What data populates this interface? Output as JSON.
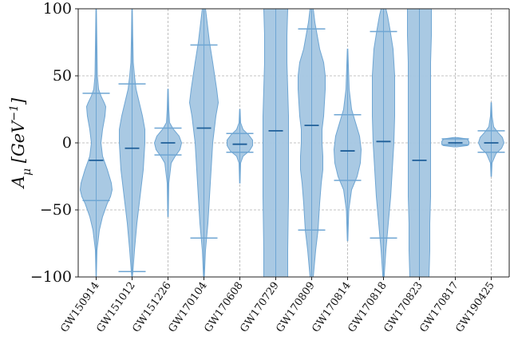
{
  "chart_data": {
    "type": "violin",
    "ylabel": "A_μ [GeV⁻¹]",
    "ylabel_parts": {
      "symbol": "A",
      "subscript": "μ",
      "unit_open": " [",
      "unit_main": "GeV",
      "unit_sup": "−1",
      "unit_close": "]"
    },
    "ylim": [
      -100,
      100
    ],
    "yticks": [
      -100,
      -50,
      0,
      50,
      100
    ],
    "ytick_labels": [
      "−100",
      "−50",
      "0",
      "50",
      "100"
    ],
    "grid": true,
    "categories": [
      "GW150914",
      "GW151012",
      "GW151226",
      "GW170104",
      "GW170608",
      "GW170729",
      "GW170809",
      "GW170814",
      "GW170818",
      "GW170823",
      "GW170817",
      "GW190425"
    ],
    "fill_color": "#a4c6e1",
    "line_color": "#6fa6d3",
    "median_color": "#1f5f99",
    "violins": [
      {
        "name": "GW150914",
        "median": -13,
        "lower": -43,
        "upper": 37,
        "tail_lo": -100,
        "tail_hi": 100,
        "profile": [
          [
            -100,
            0.2
          ],
          [
            -80,
            1
          ],
          [
            -65,
            4
          ],
          [
            -55,
            8
          ],
          [
            -45,
            14
          ],
          [
            -40,
            18
          ],
          [
            -35,
            20
          ],
          [
            -30,
            19
          ],
          [
            -20,
            14
          ],
          [
            -10,
            8
          ],
          [
            0,
            6
          ],
          [
            10,
            8
          ],
          [
            20,
            11
          ],
          [
            27,
            12
          ],
          [
            30,
            10
          ],
          [
            35,
            6
          ],
          [
            40,
            3
          ],
          [
            50,
            1.5
          ],
          [
            70,
            1
          ],
          [
            100,
            0.3
          ]
        ]
      },
      {
        "name": "GW151012",
        "median": -4,
        "lower": -96,
        "upper": 44,
        "tail_lo": -100,
        "tail_hi": 100,
        "profile": [
          [
            -100,
            0.3
          ],
          [
            -96,
            1
          ],
          [
            -80,
            3
          ],
          [
            -60,
            6
          ],
          [
            -40,
            10
          ],
          [
            -20,
            14
          ],
          [
            0,
            16
          ],
          [
            10,
            16
          ],
          [
            20,
            13
          ],
          [
            30,
            9
          ],
          [
            40,
            5
          ],
          [
            50,
            3
          ],
          [
            60,
            1.5
          ],
          [
            80,
            0.8
          ],
          [
            100,
            0.3
          ]
        ]
      },
      {
        "name": "GW151226",
        "median": 0,
        "lower": -9,
        "upper": 11,
        "tail_lo": -55,
        "tail_hi": 40,
        "profile": [
          [
            -55,
            0.3
          ],
          [
            -30,
            1
          ],
          [
            -15,
            4
          ],
          [
            -10,
            9
          ],
          [
            -5,
            15
          ],
          [
            0,
            17
          ],
          [
            5,
            14
          ],
          [
            10,
            7
          ],
          [
            15,
            2
          ],
          [
            25,
            1
          ],
          [
            40,
            0.3
          ]
        ]
      },
      {
        "name": "GW170104",
        "median": 11,
        "lower": -71,
        "upper": 73,
        "tail_lo": -100,
        "tail_hi": 100,
        "profile": [
          [
            -100,
            0.5
          ],
          [
            -80,
            2
          ],
          [
            -60,
            5
          ],
          [
            -40,
            7
          ],
          [
            -20,
            9
          ],
          [
            0,
            11
          ],
          [
            20,
            15
          ],
          [
            30,
            18
          ],
          [
            40,
            16
          ],
          [
            60,
            11
          ],
          [
            75,
            7
          ],
          [
            90,
            4
          ],
          [
            100,
            2
          ]
        ]
      },
      {
        "name": "GW170608",
        "median": -1,
        "lower": -7,
        "upper": 7,
        "tail_lo": -30,
        "tail_hi": 25,
        "profile": [
          [
            -30,
            0.3
          ],
          [
            -15,
            1
          ],
          [
            -10,
            4
          ],
          [
            -6,
            12
          ],
          [
            -2,
            16
          ],
          [
            2,
            16
          ],
          [
            6,
            11
          ],
          [
            10,
            4
          ],
          [
            15,
            1
          ],
          [
            25,
            0.3
          ]
        ]
      },
      {
        "name": "GW170729",
        "median": 9,
        "lower": -100,
        "upper": 100,
        "tail_lo": -100,
        "tail_hi": 100,
        "profile": [
          [
            -100,
            15
          ],
          [
            -80,
            15
          ],
          [
            -60,
            15.5
          ],
          [
            -40,
            16
          ],
          [
            -20,
            16
          ],
          [
            0,
            16
          ],
          [
            20,
            16
          ],
          [
            40,
            15
          ],
          [
            60,
            14
          ],
          [
            80,
            14
          ],
          [
            100,
            15
          ]
        ]
      },
      {
        "name": "GW170809",
        "median": 13,
        "lower": -65,
        "upper": 85,
        "tail_lo": -100,
        "tail_hi": 100,
        "profile": [
          [
            -100,
            2
          ],
          [
            -80,
            5
          ],
          [
            -65,
            8
          ],
          [
            -45,
            10
          ],
          [
            -30,
            12
          ],
          [
            -20,
            14
          ],
          [
            -10,
            14
          ],
          [
            0,
            13
          ],
          [
            10,
            13
          ],
          [
            20,
            15
          ],
          [
            30,
            16
          ],
          [
            40,
            17
          ],
          [
            50,
            17
          ],
          [
            60,
            15
          ],
          [
            70,
            10
          ],
          [
            80,
            7
          ],
          [
            90,
            4
          ],
          [
            100,
            2
          ]
        ]
      },
      {
        "name": "GW170814",
        "median": -6,
        "lower": -28,
        "upper": 21,
        "tail_lo": -73,
        "tail_hi": 70,
        "profile": [
          [
            -73,
            0.3
          ],
          [
            -50,
            1.5
          ],
          [
            -35,
            5
          ],
          [
            -25,
            12
          ],
          [
            -15,
            16
          ],
          [
            -5,
            17
          ],
          [
            5,
            15
          ],
          [
            15,
            10
          ],
          [
            25,
            5
          ],
          [
            40,
            2
          ],
          [
            70,
            0.3
          ]
        ]
      },
      {
        "name": "GW170818",
        "median": 1,
        "lower": -71,
        "upper": 83,
        "tail_lo": -100,
        "tail_hi": 100,
        "profile": [
          [
            -100,
            0.8
          ],
          [
            -80,
            3
          ],
          [
            -60,
            6
          ],
          [
            -40,
            9
          ],
          [
            -20,
            11
          ],
          [
            0,
            13
          ],
          [
            20,
            14
          ],
          [
            30,
            14
          ],
          [
            50,
            14
          ],
          [
            70,
            12
          ],
          [
            85,
            8
          ],
          [
            95,
            5
          ],
          [
            100,
            3
          ]
        ]
      },
      {
        "name": "GW170823",
        "median": -13,
        "lower": -100,
        "upper": 100,
        "tail_lo": -100,
        "tail_hi": 100,
        "profile": [
          [
            -100,
            12
          ],
          [
            -80,
            13
          ],
          [
            -60,
            13
          ],
          [
            -40,
            14
          ],
          [
            -20,
            14
          ],
          [
            0,
            14
          ],
          [
            20,
            14
          ],
          [
            40,
            14
          ],
          [
            60,
            14
          ],
          [
            80,
            15
          ],
          [
            95,
            15
          ],
          [
            100,
            15
          ]
        ]
      },
      {
        "name": "GW170817",
        "median": 0,
        "lower": -1.5,
        "upper": 3,
        "tail_lo": -3,
        "tail_hi": 4,
        "profile": [
          [
            -3,
            2
          ],
          [
            -2,
            15
          ],
          [
            -1,
            17
          ],
          [
            0,
            17
          ],
          [
            1,
            17
          ],
          [
            2,
            16
          ],
          [
            3,
            14
          ],
          [
            4,
            2
          ]
        ]
      },
      {
        "name": "GW190425",
        "median": 0,
        "lower": -7,
        "upper": 9,
        "tail_lo": -25,
        "tail_hi": 30,
        "profile": [
          [
            -25,
            0.3
          ],
          [
            -15,
            1
          ],
          [
            -8,
            6
          ],
          [
            -4,
            13
          ],
          [
            0,
            16
          ],
          [
            4,
            14
          ],
          [
            8,
            8
          ],
          [
            12,
            3
          ],
          [
            20,
            1
          ],
          [
            30,
            0.3
          ]
        ]
      }
    ]
  }
}
